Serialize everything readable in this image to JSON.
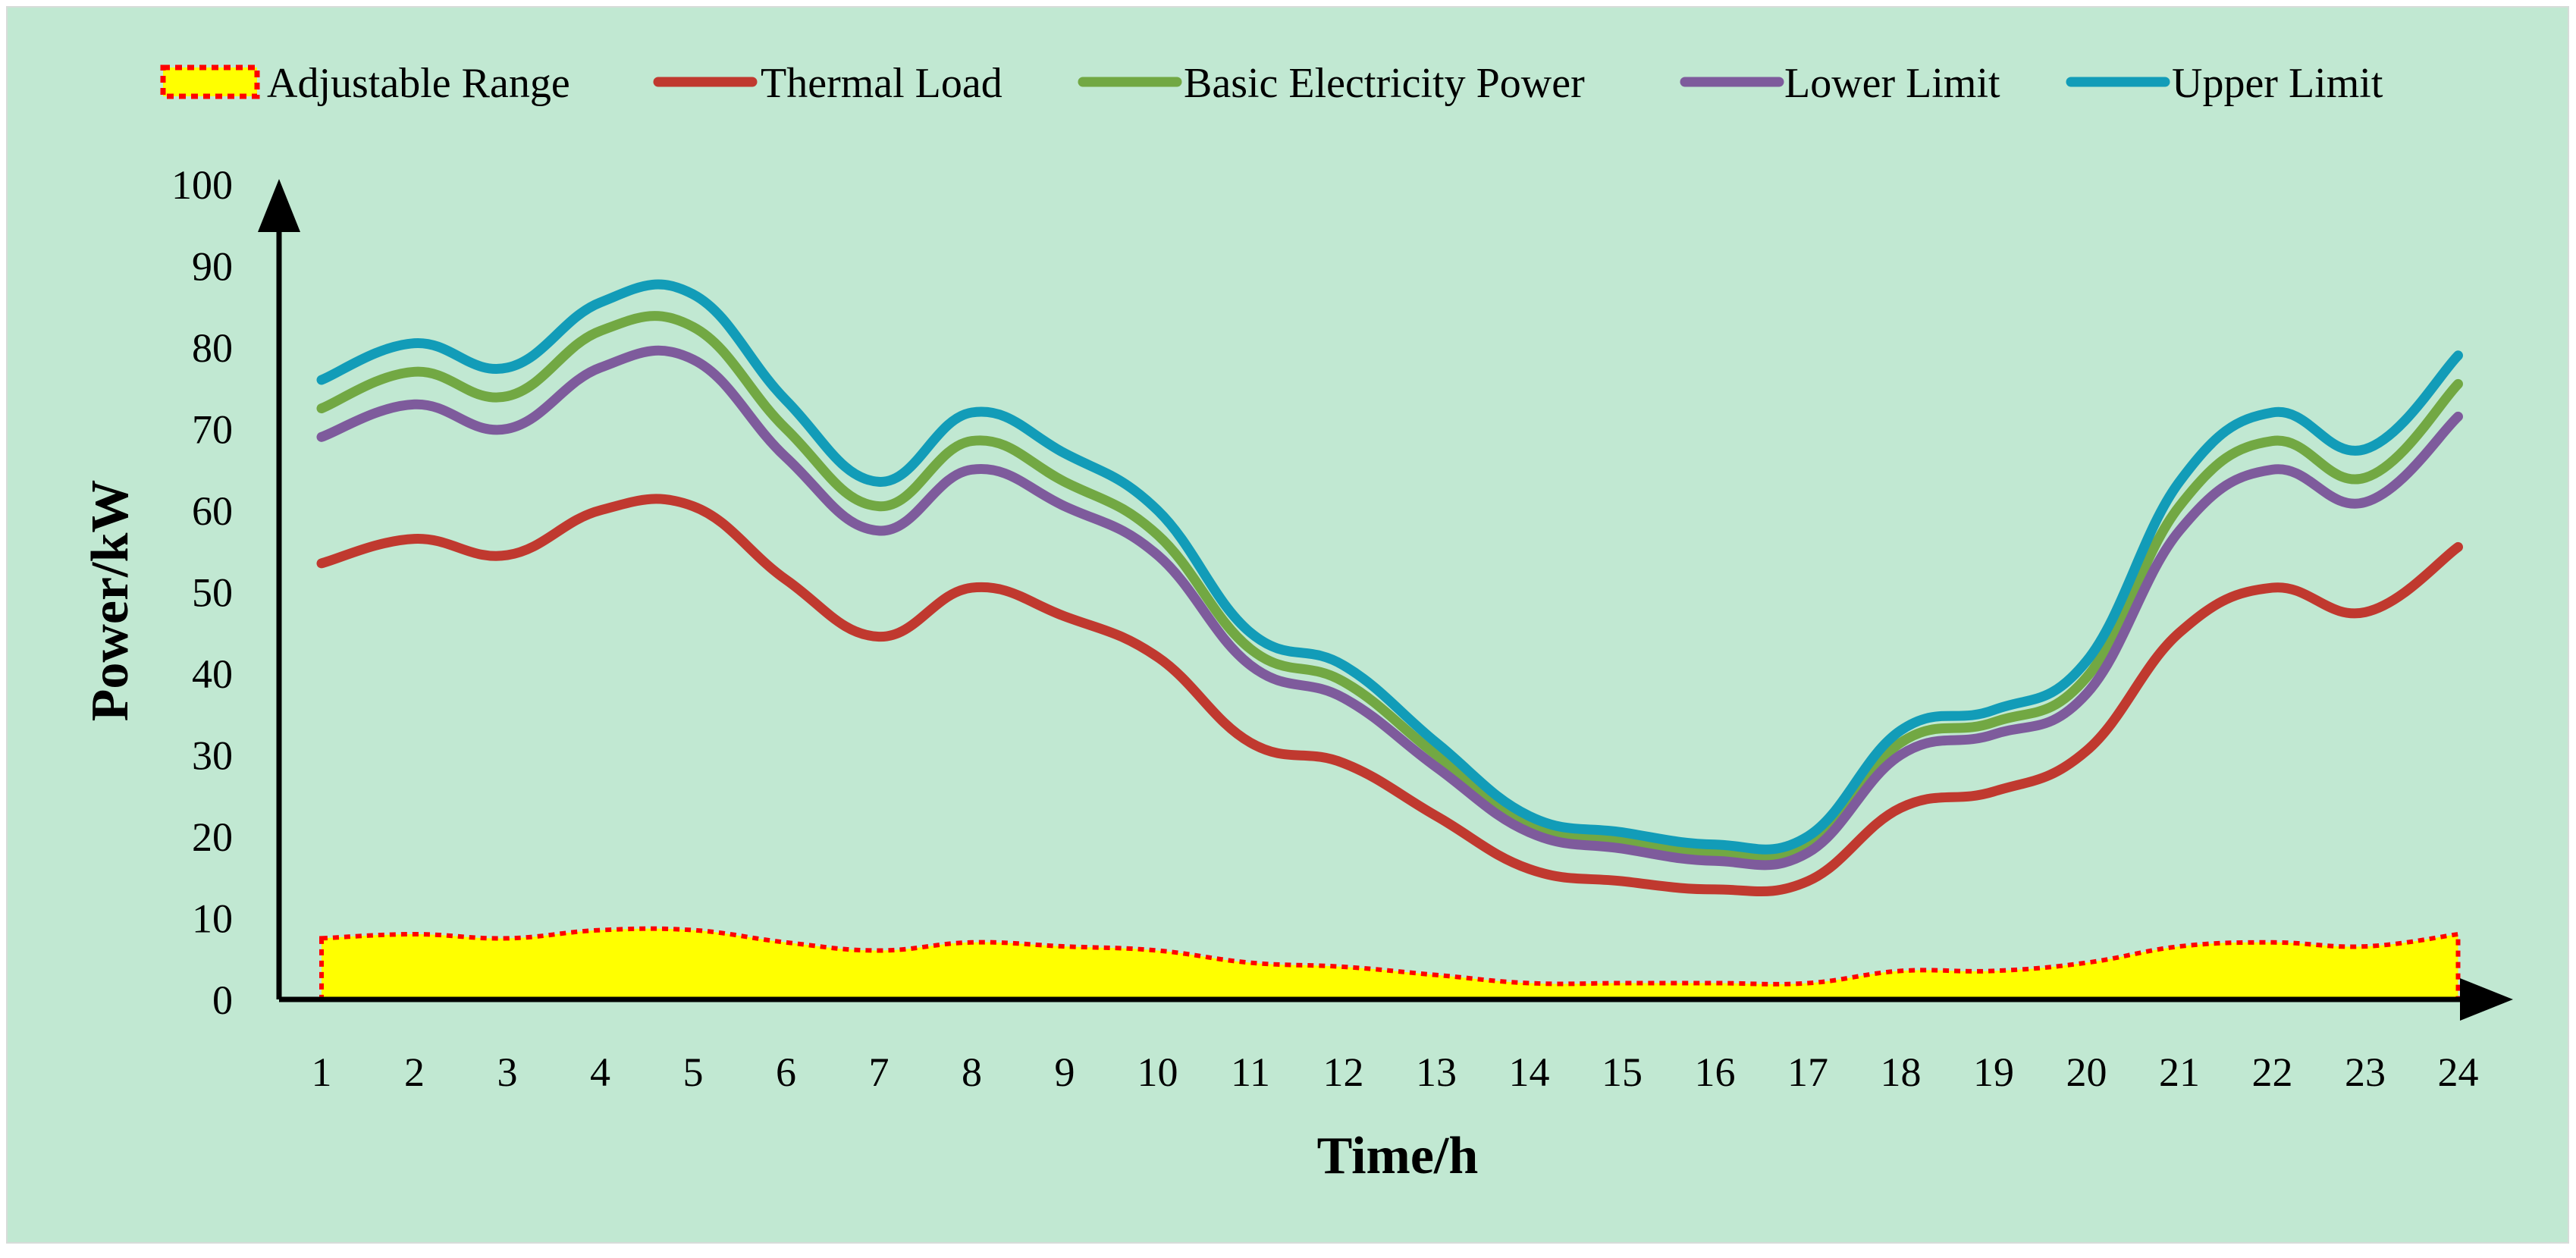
{
  "chart_data": {
    "type": "line",
    "title": "",
    "xlabel": "Time/h",
    "ylabel": "Power/kW",
    "ylim": [
      0,
      100
    ],
    "yticks": [
      0,
      10,
      20,
      30,
      40,
      50,
      60,
      70,
      80,
      90,
      100
    ],
    "x": [
      1,
      2,
      3,
      4,
      5,
      6,
      7,
      8,
      9,
      10,
      11,
      12,
      13,
      14,
      15,
      16,
      17,
      18,
      19,
      20,
      21,
      22,
      23,
      24
    ],
    "grid": false,
    "legend_position": "top",
    "series": [
      {
        "name": "Adjustable Range",
        "kind": "area",
        "color": "#ffff00",
        "edge_color": "#ff0000",
        "values": [
          7.5,
          8,
          7.5,
          8.5,
          8.5,
          7,
          6,
          7,
          6.5,
          6,
          4.5,
          4,
          3,
          2,
          2,
          2,
          2,
          3.5,
          3.5,
          4.5,
          6.5,
          7,
          6.5,
          8
        ]
      },
      {
        "name": "Thermal Load",
        "kind": "line",
        "color": "#c0392f",
        "values": [
          53.5,
          56.5,
          54.5,
          60,
          60.5,
          51.5,
          44.5,
          50.5,
          47,
          42,
          31.5,
          29,
          22.5,
          16,
          14.5,
          13.5,
          14.5,
          23.5,
          25.5,
          30.5,
          45,
          50.5,
          47.5,
          55.5
        ]
      },
      {
        "name": "Basic Electricity Power",
        "kind": "line",
        "color": "#72a843",
        "values": [
          72.5,
          77,
          74,
          82,
          82.5,
          70,
          60.5,
          68.5,
          63.5,
          57,
          43,
          39,
          30,
          21.5,
          19.5,
          18,
          19,
          31.5,
          34,
          39.5,
          60.5,
          68.5,
          64,
          75.5
        ]
      },
      {
        "name": "Lower Limit",
        "kind": "line",
        "color": "#7e5b9c",
        "values": [
          69,
          73,
          70,
          77.5,
          78.5,
          66.5,
          57.5,
          65,
          60.5,
          54.5,
          41,
          37,
          28.5,
          20.5,
          18.5,
          17,
          18,
          30,
          32.5,
          37.5,
          57.5,
          65,
          61,
          71.5
        ]
      },
      {
        "name": "Upper Limit",
        "kind": "line",
        "color": "#129cb8",
        "values": [
          76,
          80.5,
          77.5,
          85.5,
          86.5,
          73.5,
          63.5,
          72,
          67,
          60,
          45,
          41,
          31.5,
          22.5,
          20.5,
          19,
          20,
          33,
          35.5,
          41.5,
          63.5,
          72,
          67.5,
          79
        ]
      }
    ]
  }
}
